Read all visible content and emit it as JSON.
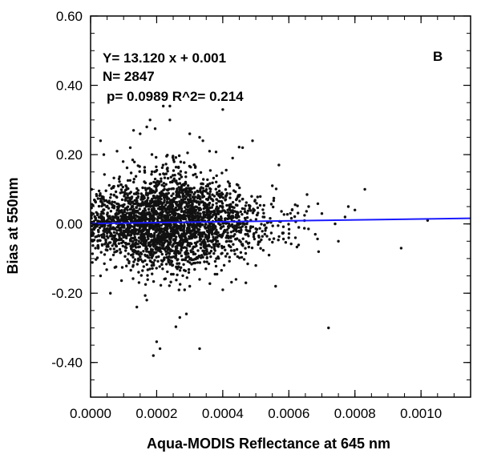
{
  "chart_data": {
    "type": "scatter",
    "title": "",
    "xlabel": "Aqua-MODIS Reflectance at 645 nm",
    "ylabel": "Bias at 550nm",
    "xlim": [
      0,
      0.00115
    ],
    "ylim": [
      -0.5,
      0.6
    ],
    "x_ticks": [
      0.0,
      0.0002,
      0.0004,
      0.0006,
      0.0008,
      0.001
    ],
    "x_tick_labels": [
      "0.0000",
      "0.0002",
      "0.0004",
      "0.0006",
      "0.0008",
      "0.0010"
    ],
    "y_ticks": [
      -0.4,
      -0.2,
      0.0,
      0.2,
      0.4,
      0.6
    ],
    "y_tick_labels": [
      "-0.40",
      "-0.20",
      "0.00",
      "0.20",
      "0.40",
      "0.60"
    ],
    "grid": false,
    "point_color": "#111111",
    "regression": {
      "slope": 13.12,
      "intercept": 0.001,
      "color": "#1a1aff"
    },
    "annotations": {
      "equation": "Y= 13.120 x + 0.001",
      "n": "N=  2847",
      "stats": "p= 0.0989  R^2= 0.214",
      "panel": "B"
    },
    "point_count": 2847,
    "outlier_points": [
      {
        "x": 0.00022,
        "y": 0.34
      },
      {
        "x": 0.00024,
        "y": 0.34
      },
      {
        "x": 0.0004,
        "y": 0.33
      },
      {
        "x": 0.00018,
        "y": 0.3
      },
      {
        "x": 0.00017,
        "y": 0.28
      },
      {
        "x": 0.00013,
        "y": 0.27
      },
      {
        "x": 0.00015,
        "y": 0.26
      },
      {
        "x": 0.0003,
        "y": 0.26
      },
      {
        "x": 0.00033,
        "y": 0.25
      },
      {
        "x": 3e-05,
        "y": 0.24
      },
      {
        "x": 0.00049,
        "y": 0.24
      },
      {
        "x": 0.00046,
        "y": 0.22
      },
      {
        "x": 4e-05,
        "y": 0.2
      },
      {
        "x": 8e-05,
        "y": 0.21
      },
      {
        "x": 0.00043,
        "y": 0.19
      },
      {
        "x": 0.00057,
        "y": 0.17
      },
      {
        "x": 0.00055,
        "y": 0.11
      },
      {
        "x": 0.00083,
        "y": 0.1
      },
      {
        "x": 0.00078,
        "y": 0.05
      },
      {
        "x": 0.0008,
        "y": 0.04
      },
      {
        "x": 0.00066,
        "y": 0.05
      },
      {
        "x": 0.0007,
        "y": 0.03
      },
      {
        "x": 0.00077,
        "y": 0.02
      },
      {
        "x": 0.00074,
        "y": 0.0
      },
      {
        "x": 0.00102,
        "y": 0.01
      },
      {
        "x": 0.00062,
        "y": -0.04
      },
      {
        "x": 0.00068,
        "y": -0.03
      },
      {
        "x": 0.00075,
        "y": -0.05
      },
      {
        "x": 0.00094,
        "y": -0.07
      },
      {
        "x": 0.00054,
        "y": -0.09
      },
      {
        "x": 0.00056,
        "y": -0.18
      },
      {
        "x": 0.00047,
        "y": -0.17
      },
      {
        "x": 0.00072,
        "y": -0.3
      },
      {
        "x": 0.00019,
        "y": -0.38
      },
      {
        "x": 0.00033,
        "y": -0.36
      },
      {
        "x": 0.00021,
        "y": -0.36
      },
      {
        "x": 0.0002,
        "y": -0.34
      },
      {
        "x": 0.00027,
        "y": -0.27
      },
      {
        "x": 0.00029,
        "y": -0.26
      },
      {
        "x": 0.00014,
        "y": -0.24
      },
      {
        "x": 6e-05,
        "y": -0.2
      },
      {
        "x": 0.00017,
        "y": -0.22
      },
      {
        "x": 0.0003,
        "y": -0.18
      },
      {
        "x": 0.0004,
        "y": -0.19
      },
      {
        "x": 3e-05,
        "y": -0.15
      },
      {
        "x": 0.00024,
        "y": 0.3
      },
      {
        "x": 0.00034,
        "y": 0.24
      },
      {
        "x": 0.00036,
        "y": 0.21
      },
      {
        "x": 0.00012,
        "y": 0.22
      },
      {
        "x": 0.0005,
        "y": -0.12
      },
      {
        "x": 0.00044,
        "y": -0.16
      },
      {
        "x": 0.00063,
        "y": -0.01
      },
      {
        "x": 0.00061,
        "y": 0.04
      },
      {
        "x": 0.00069,
        "y": -0.08
      }
    ]
  }
}
